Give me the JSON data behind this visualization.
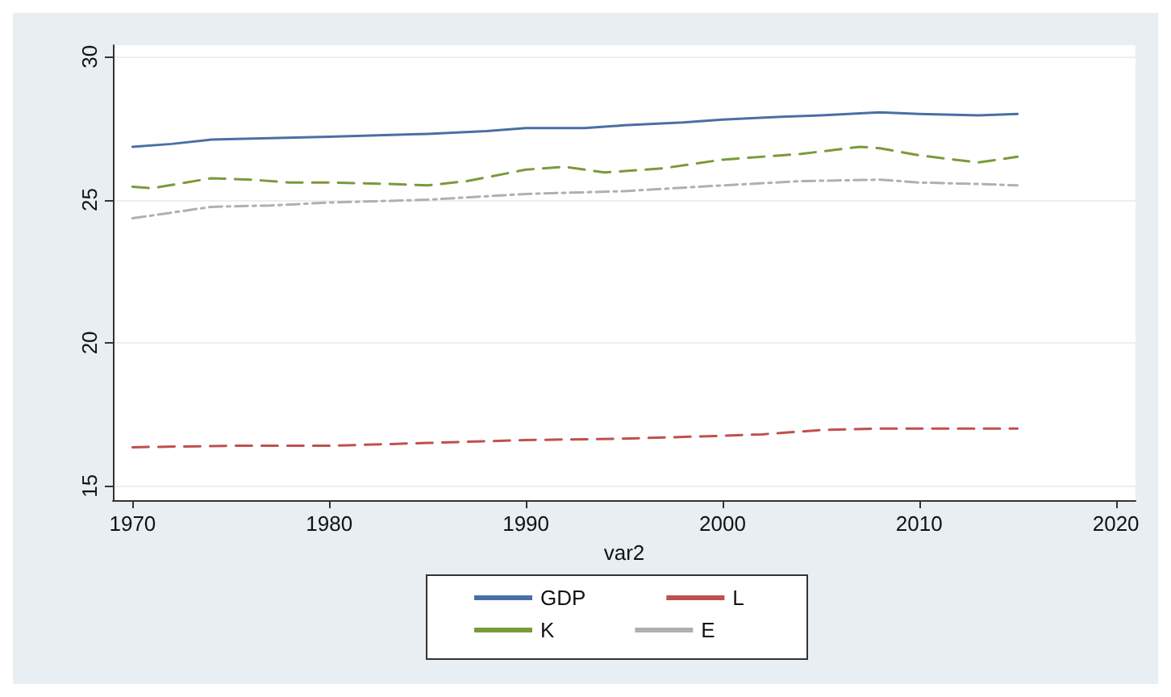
{
  "chart_data": {
    "type": "line",
    "xlabel": "var2",
    "xlim": [
      1969,
      2021
    ],
    "xticks": [
      1970,
      1980,
      1990,
      2000,
      2010,
      2020
    ],
    "ylim": [
      14.5,
      30.4
    ],
    "yticks": [
      15,
      20,
      25,
      30
    ],
    "grid": "y",
    "legend": "bottom",
    "marker": "none",
    "series": [
      {
        "name": "GDP",
        "color": "#4a6fa5",
        "line_style": "solid",
        "x": [
          1970,
          1972,
          1974,
          1977,
          1980,
          1985,
          1988,
          1990,
          1993,
          1995,
          1998,
          2000,
          2003,
          2005,
          2008,
          2010,
          2013,
          2015
        ],
        "values": [
          26.85,
          26.95,
          27.1,
          27.15,
          27.2,
          27.3,
          27.4,
          27.5,
          27.5,
          27.6,
          27.7,
          27.8,
          27.9,
          27.95,
          28.05,
          28.0,
          27.95,
          28.0
        ]
      },
      {
        "name": "L",
        "color": "#c0504d",
        "line_style": "dashed",
        "x": [
          1970,
          1975,
          1980,
          1985,
          1990,
          1995,
          2000,
          2002,
          2005,
          2008,
          2010,
          2015
        ],
        "values": [
          16.35,
          16.4,
          16.4,
          16.5,
          16.6,
          16.65,
          16.75,
          16.8,
          16.95,
          17.0,
          17.0,
          17.0
        ]
      },
      {
        "name": "K",
        "color": "#7a9a3a",
        "line_style": "dashed",
        "x": [
          1970,
          1971,
          1974,
          1976,
          1978,
          1980,
          1983,
          1985,
          1987,
          1990,
          1992,
          1994,
          1997,
          2000,
          2004,
          2007,
          2008,
          2010,
          2013,
          2015
        ],
        "values": [
          25.45,
          25.4,
          25.75,
          25.7,
          25.6,
          25.6,
          25.55,
          25.5,
          25.65,
          26.05,
          26.15,
          25.95,
          26.1,
          26.4,
          26.6,
          26.85,
          26.8,
          26.55,
          26.3,
          26.5
        ]
      },
      {
        "name": "E",
        "color": "#b0b0b0",
        "line_style": "dotted",
        "x": [
          1970,
          1974,
          1977,
          1980,
          1985,
          1990,
          1995,
          2000,
          2004,
          2008,
          2010,
          2013,
          2015
        ],
        "values": [
          24.35,
          24.75,
          24.8,
          24.9,
          25.0,
          25.2,
          25.3,
          25.5,
          25.65,
          25.7,
          25.6,
          25.55,
          25.5
        ]
      }
    ]
  }
}
